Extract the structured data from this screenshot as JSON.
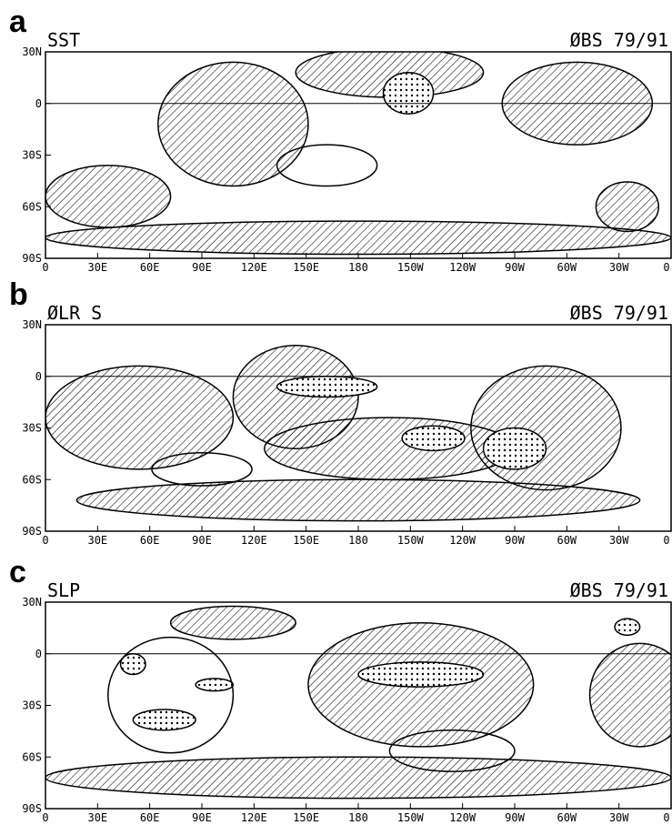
{
  "panels": [
    {
      "letter": "a",
      "title": "SST",
      "source": "ØBS 79/91",
      "lat_labels": [
        "30N",
        "0",
        "30S",
        "60S",
        "90S"
      ],
      "lon_labels": [
        "0",
        "30E",
        "60E",
        "90E",
        "120E",
        "150E",
        "180",
        "150W",
        "120W",
        "90W",
        "60W",
        "30W",
        "0"
      ]
    },
    {
      "letter": "b",
      "title": "ØLR  S",
      "source": "ØBS 79/91",
      "lat_labels": [
        "30N",
        "0",
        "30S",
        "60S",
        "90S"
      ],
      "lon_labels": [
        "0",
        "30E",
        "60E",
        "90E",
        "120E",
        "150E",
        "180",
        "150W",
        "120W",
        "90W",
        "60W",
        "30W",
        "0"
      ]
    },
    {
      "letter": "c",
      "title": "SLP",
      "source": "ØBS 79/91",
      "lat_labels": [
        "30N",
        "0",
        "30S",
        "60S",
        "90S"
      ],
      "lon_labels": [
        "0",
        "30E",
        "60E",
        "90E",
        "120E",
        "150E",
        "180",
        "150W",
        "120W",
        "90W",
        "60W",
        "30W",
        "0"
      ]
    }
  ]
}
